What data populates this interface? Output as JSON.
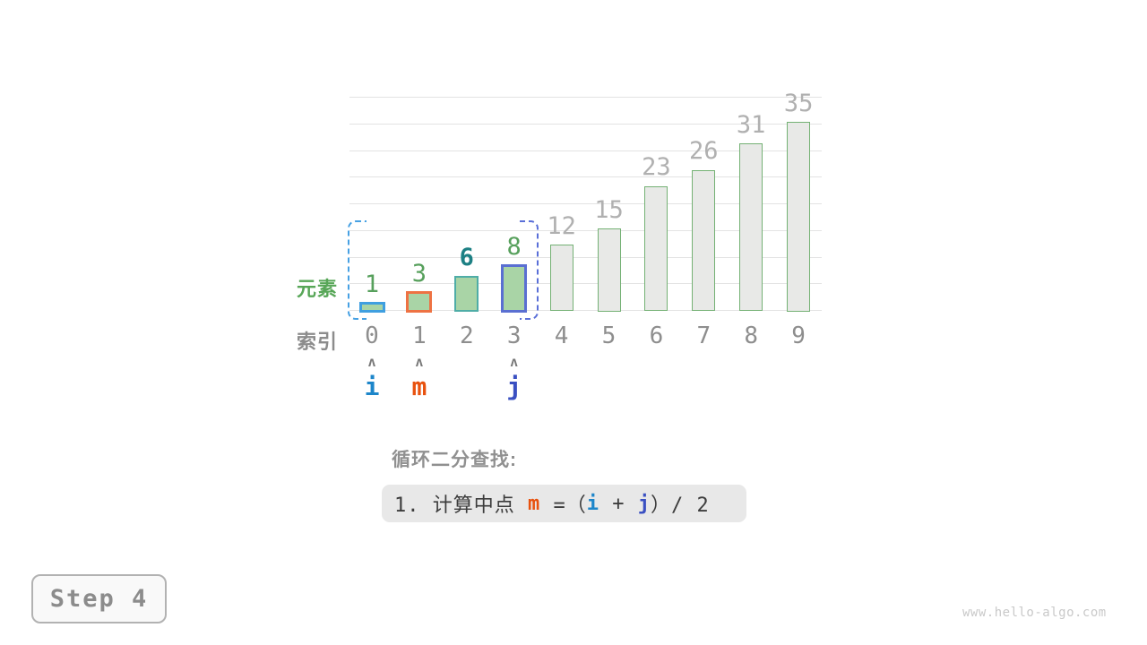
{
  "chart_data": {
    "type": "bar",
    "title": "",
    "xlabel": "索引",
    "ylabel": "元素",
    "categories": [
      "0",
      "1",
      "2",
      "3",
      "4",
      "5",
      "6",
      "7",
      "8",
      "9"
    ],
    "values": [
      1,
      3,
      6,
      8,
      12,
      15,
      23,
      26,
      31,
      35
    ],
    "ylim": [
      0,
      40
    ],
    "gridline_step": 5,
    "grid": true,
    "legend": "none",
    "bars": [
      {
        "index": "0",
        "value": 1,
        "fill": "#a9d4a6",
        "stroke": "#3f9fe0",
        "stroke_width": 3,
        "label_color": "#57a05c",
        "label_bold": false
      },
      {
        "index": "1",
        "value": 3,
        "fill": "#a9d4a6",
        "stroke": "#ee7243",
        "stroke_width": 3,
        "label_color": "#57a05c",
        "label_bold": false
      },
      {
        "index": "2",
        "value": 6,
        "fill": "#a9d4a6",
        "stroke": "#4fada7",
        "stroke_width": 2,
        "label_color": "#1d8084",
        "label_bold": true
      },
      {
        "index": "3",
        "value": 8,
        "fill": "#a9d4a6",
        "stroke": "#5a6fd2",
        "stroke_width": 3,
        "label_color": "#57a05c",
        "label_bold": false
      },
      {
        "index": "4",
        "value": 12,
        "fill": "#e8e9e7",
        "stroke": "#74b174",
        "stroke_width": 1.5,
        "label_color": "#b0b0b0",
        "label_bold": false
      },
      {
        "index": "5",
        "value": 15,
        "fill": "#e8e9e7",
        "stroke": "#74b174",
        "stroke_width": 1.5,
        "label_color": "#b0b0b0",
        "label_bold": false
      },
      {
        "index": "6",
        "value": 23,
        "fill": "#e8e9e7",
        "stroke": "#74b174",
        "stroke_width": 1.5,
        "label_color": "#b0b0b0",
        "label_bold": false
      },
      {
        "index": "7",
        "value": 26,
        "fill": "#e8e9e7",
        "stroke": "#74b174",
        "stroke_width": 1.5,
        "label_color": "#b0b0b0",
        "label_bold": false
      },
      {
        "index": "8",
        "value": 31,
        "fill": "#e8e9e7",
        "stroke": "#74b174",
        "stroke_width": 1.5,
        "label_color": "#b0b0b0",
        "label_bold": false
      },
      {
        "index": "9",
        "value": 35,
        "fill": "#e8e9e7",
        "stroke": "#74b174",
        "stroke_width": 1.5,
        "label_color": "#b0b0b0",
        "label_bold": false
      }
    ]
  },
  "axis": {
    "element_label": "元素",
    "element_label_color": "#57a657",
    "index_label": "索引",
    "index_label_color": "#8c8c8c"
  },
  "search_range": {
    "start_index": 0,
    "end_index": 3,
    "left_bracket_color": "#47a1e3",
    "right_bracket_color": "#5a6fd8"
  },
  "pointers": [
    {
      "label": "i",
      "index": 0,
      "color": "#1d86ca"
    },
    {
      "label": "m",
      "index": 1,
      "color": "#e8520f"
    },
    {
      "label": "j",
      "index": 3,
      "color": "#3a50c2"
    }
  ],
  "caption": {
    "heading": "循环二分查找:",
    "formula_segments": [
      {
        "text": "1. 计算中点 ",
        "color": "#3c3c3c",
        "bold": false
      },
      {
        "text": "m",
        "color": "#e8520f",
        "bold": true
      },
      {
        "text": " =（",
        "color": "#3c3c3c",
        "bold": false
      },
      {
        "text": "i",
        "color": "#1d86ca",
        "bold": true
      },
      {
        "text": " + ",
        "color": "#3c3c3c",
        "bold": false
      },
      {
        "text": "j",
        "color": "#3a50c2",
        "bold": true
      },
      {
        "text": "）/ 2",
        "color": "#3c3c3c",
        "bold": false
      }
    ]
  },
  "step_badge": {
    "label": "Step 4"
  },
  "watermark": {
    "text": "www.hello-algo.com"
  }
}
